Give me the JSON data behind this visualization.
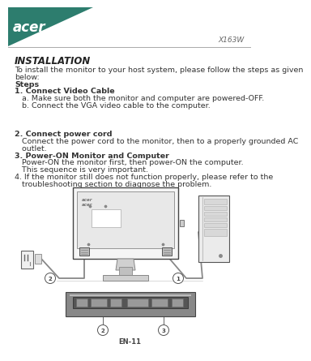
{
  "bg_color": "#ffffff",
  "header_bg": "#2d7d6e",
  "header_text": "acer",
  "header_text_color": "#ffffff",
  "model_text": "X163W",
  "line_color": "#aaaaaa",
  "title_text": "INSTALLATION",
  "footer_text": "EN-11",
  "body_color": "#333333",
  "diagram_color": "#555555",
  "body_lines": [
    [
      "To install the monitor to your host system, please follow the steps as given",
      "normal"
    ],
    [
      "below:",
      "normal"
    ],
    [
      "Steps",
      "bold"
    ],
    [
      "1. Connect Video Cable",
      "bold"
    ],
    [
      "   a. Make sure both the monitor and computer are powered-OFF.",
      "normal"
    ],
    [
      "   b. Connect the VGA video cable to the computer.",
      "normal"
    ],
    [
      "",
      "normal"
    ],
    [
      "",
      "normal"
    ],
    [
      "",
      "normal"
    ],
    [
      "2. Connect power cord",
      "bold"
    ],
    [
      "   Connect the power cord to the monitor, then to a properly grounded AC",
      "normal"
    ],
    [
      "   outlet.",
      "normal"
    ],
    [
      "3. Power-ON Monitor and Computer",
      "bold"
    ],
    [
      "   Power-ON the monitor first, then power-ON the computer.",
      "normal"
    ],
    [
      "   This sequence is very important.",
      "normal"
    ],
    [
      "4. If the monitor still does not function properly, please refer to the",
      "normal"
    ],
    [
      "   troubleshooting section to diagnose the problem.",
      "normal"
    ]
  ]
}
